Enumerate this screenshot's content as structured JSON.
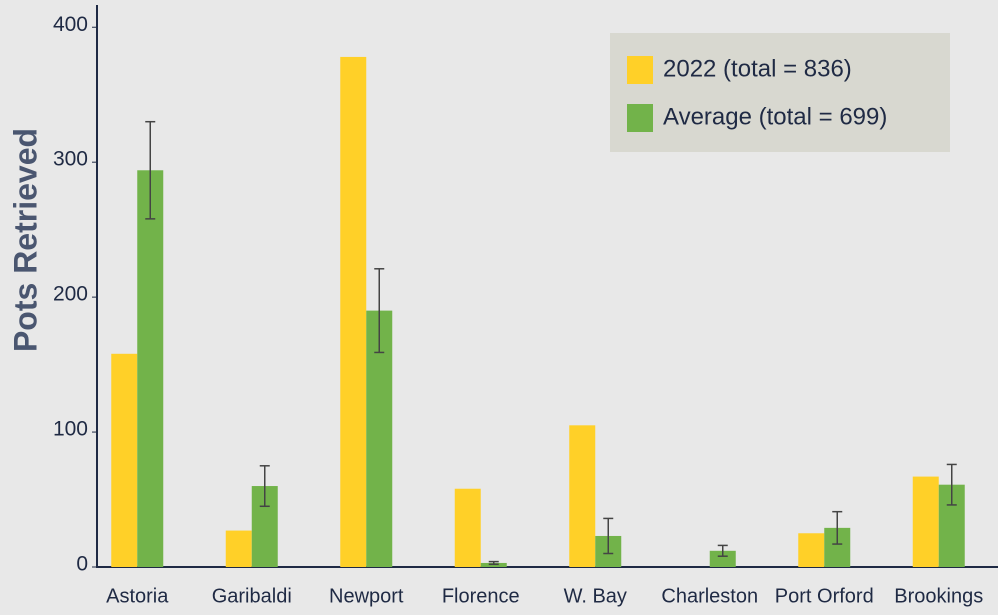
{
  "chart_data": {
    "type": "bar",
    "y_label": "Pots Retrieved",
    "categories": [
      "Astoria",
      "Garibaldi",
      "Newport",
      "Florence",
      "W. Bay",
      "Charleston",
      "Port Orford",
      "Brookings"
    ],
    "series": [
      {
        "name": "2022 (total = 836)",
        "color": "#ffd028",
        "values": [
          158,
          27,
          378,
          58,
          105,
          0,
          25,
          67
        ]
      },
      {
        "name": "Average (total = 699)",
        "color": "#72b34a",
        "values": [
          294,
          60,
          190,
          3,
          23,
          12,
          29,
          61
        ],
        "errors": [
          36,
          15,
          31,
          1,
          13,
          4,
          12,
          15
        ]
      }
    ],
    "ylim": [
      0,
      415
    ],
    "yticks": [
      0,
      100,
      200,
      300,
      400
    ],
    "legend": "upper right"
  }
}
